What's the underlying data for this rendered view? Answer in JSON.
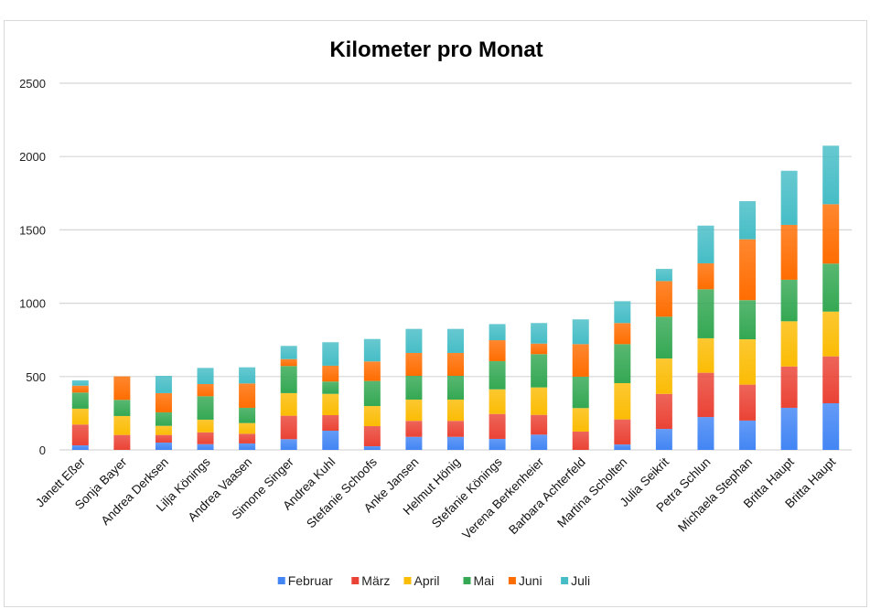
{
  "chart_data": {
    "type": "bar",
    "stacked": true,
    "title": "Kilometer pro Monat",
    "xlabel": "",
    "ylabel": "",
    "ylim": [
      0,
      2500
    ],
    "yticks": [
      0,
      500,
      1000,
      1500,
      2000,
      2500
    ],
    "grid": true,
    "legend_position": "bottom",
    "categories": [
      "Janett Eßer",
      "Sonja Bayer",
      "Andrea Derksen",
      "Lilja Könings",
      "Andrea Vaasen",
      "Simone Singer",
      "Andrea Kuhl",
      "Stefanie Schoofs",
      "Anke Jansen",
      "Helmut Hönig",
      "Stefanie Könings",
      "Verena Berkenheier",
      "Barbara Achterfeld",
      "Martina Scholten",
      "Julia Seikrit",
      "Petra Schlun",
      "Michaela Stephan",
      "Britta Haupt",
      "Britta Haupt"
    ],
    "series": [
      {
        "name": "Februar",
        "color": "#4285F4",
        "values": [
          31,
          0,
          50,
          39,
          44,
          73,
          131,
          25,
          89,
          89,
          75,
          104,
          0,
          37,
          143,
          224,
          200,
          287,
          318
        ]
      },
      {
        "name": "März",
        "color": "#EA4335",
        "values": [
          142,
          102,
          52,
          81,
          66,
          160,
          106,
          137,
          109,
          109,
          170,
          135,
          125,
          171,
          239,
          302,
          245,
          282,
          320
        ]
      },
      {
        "name": "April",
        "color": "#FBBC04",
        "values": [
          108,
          129,
          62,
          86,
          73,
          154,
          145,
          137,
          145,
          145,
          168,
          187,
          160,
          247,
          241,
          235,
          309,
          308,
          305
        ]
      },
      {
        "name": "Mai",
        "color": "#34A853",
        "values": [
          110,
          110,
          92,
          160,
          104,
          185,
          84,
          171,
          162,
          162,
          192,
          227,
          214,
          266,
          285,
          334,
          267,
          283,
          327
        ]
      },
      {
        "name": "Juni",
        "color": "#FF6D01",
        "values": [
          47,
          160,
          131,
          83,
          166,
          47,
          108,
          133,
          156,
          156,
          143,
          72,
          222,
          144,
          243,
          177,
          415,
          374,
          405
        ]
      },
      {
        "name": "Juli",
        "color": "#46BDC6",
        "values": [
          36,
          0,
          118,
          110,
          110,
          90,
          160,
          153,
          164,
          164,
          110,
          140,
          169,
          149,
          83,
          257,
          260,
          369,
          399
        ]
      }
    ]
  }
}
